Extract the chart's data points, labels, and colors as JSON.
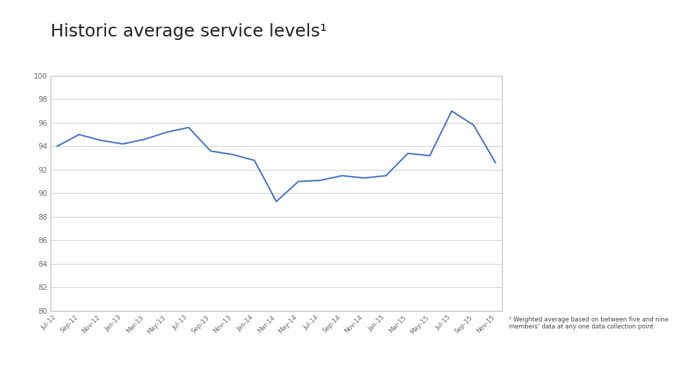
{
  "title": "Historic average service levels¹",
  "title_fontsize": 18,
  "title_color": "#222222",
  "footnote": "¹ Weighted average based on between five and nine\nmembers’ data at any one data collection point",
  "line_color": "#4472C4",
  "line_width": 1.5,
  "background_color": "#ffffff",
  "plot_bg_color": "#ffffff",
  "ylim": [
    80,
    100
  ],
  "yticks": [
    80,
    82,
    84,
    86,
    88,
    90,
    92,
    94,
    96,
    98,
    100
  ],
  "x_labels": [
    "Jul-12",
    "Sep-12",
    "Nov-12",
    "Jan-13",
    "Mar-13",
    "May-13",
    "Jul-13",
    "Sep-13",
    "Nov-13",
    "Jan-14",
    "Mar-14",
    "May-14",
    "Jul-14",
    "Sep-14",
    "Nov-14",
    "Jan-15",
    "Mar-15",
    "May-15",
    "Jul-15",
    "Sep-15",
    "Nov-15"
  ],
  "y_values": [
    94.0,
    95.0,
    94.5,
    94.2,
    94.6,
    95.2,
    95.6,
    93.6,
    93.3,
    92.8,
    89.3,
    91.0,
    91.1,
    91.5,
    91.3,
    91.5,
    93.4,
    93.2,
    97.0,
    95.8,
    92.6
  ],
  "footer_red": "#c0002a",
  "footer_blue": "#445580",
  "grid_color": "#cccccc",
  "tick_color": "#666666",
  "spine_color": "#bbbbbb"
}
